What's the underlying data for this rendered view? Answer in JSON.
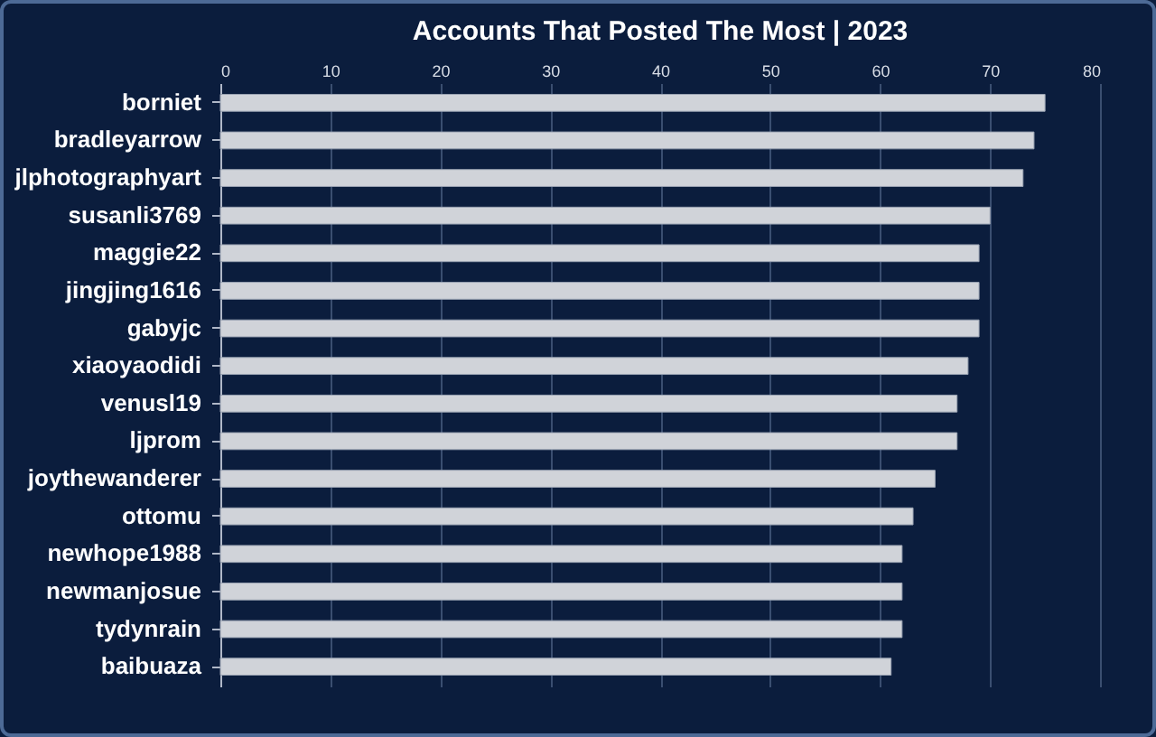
{
  "chart_data": {
    "type": "bar",
    "title": "Accounts That Posted The Most | 2023",
    "orientation": "horizontal",
    "categories": [
      "borniet",
      "bradleyarrow",
      "jlphotographyart",
      "susanli3769",
      "maggie22",
      "jingjing1616",
      "gabyjc",
      "xiaoyaodidi",
      "venusl19",
      "ljprom",
      "joythewanderer",
      "ottomu",
      "newhope1988",
      "newmanjosue",
      "tydynrain",
      "baibuaza"
    ],
    "values": [
      75,
      74,
      73,
      70,
      69,
      69,
      69,
      68,
      67,
      67,
      65,
      63,
      62,
      62,
      62,
      61
    ],
    "color": "#d0d3d9",
    "xlim": [
      0,
      80
    ],
    "xticks": [
      0,
      10,
      20,
      30,
      40,
      50,
      60,
      70,
      80
    ],
    "grid": "x"
  }
}
